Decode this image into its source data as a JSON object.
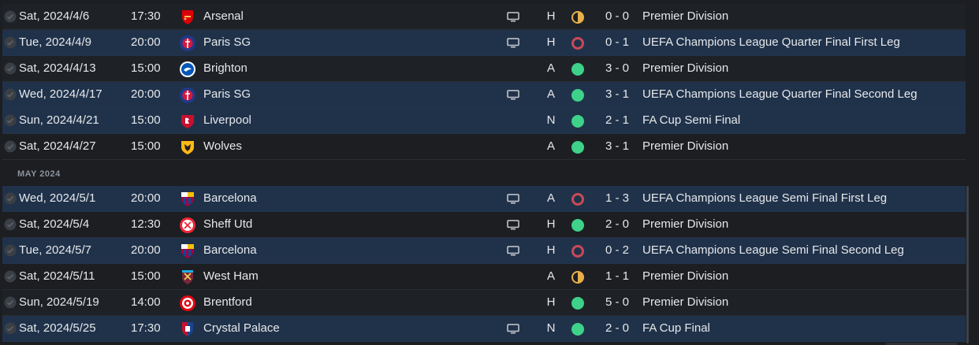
{
  "colors": {
    "win": "#3dd18a",
    "draw": "#e8b04a",
    "loss": "#c84a56",
    "row_highlight": "#20324a"
  },
  "month_header": "MAY 2024",
  "fixtures": [
    {
      "date": "Sat, 2024/4/6",
      "time": "17:30",
      "team": "Arsenal",
      "crest": "arsenal-crest-icon",
      "tv": true,
      "venue": "H",
      "result": "draw",
      "score": "0 - 0",
      "competition": "Premier Division",
      "highlight": false
    },
    {
      "date": "Tue, 2024/4/9",
      "time": "20:00",
      "team": "Paris SG",
      "crest": "psg-crest-icon",
      "tv": true,
      "venue": "H",
      "result": "loss",
      "score": "0 - 1",
      "competition": "UEFA Champions League Quarter Final First Leg",
      "highlight": true
    },
    {
      "date": "Sat, 2024/4/13",
      "time": "15:00",
      "team": "Brighton",
      "crest": "brighton-crest-icon",
      "tv": false,
      "venue": "A",
      "result": "win",
      "score": "3 - 0",
      "competition": "Premier Division",
      "highlight": false
    },
    {
      "date": "Wed, 2024/4/17",
      "time": "20:00",
      "team": "Paris SG",
      "crest": "psg-crest-icon",
      "tv": true,
      "venue": "A",
      "result": "win",
      "score": "3 - 1",
      "competition": "UEFA Champions League Quarter Final Second Leg",
      "highlight": true
    },
    {
      "date": "Sun, 2024/4/21",
      "time": "15:00",
      "team": "Liverpool",
      "crest": "liverpool-crest-icon",
      "tv": false,
      "venue": "N",
      "result": "win",
      "score": "2 - 1",
      "competition": "FA Cup Semi Final",
      "highlight": true
    },
    {
      "date": "Sat, 2024/4/27",
      "time": "15:00",
      "team": "Wolves",
      "crest": "wolves-crest-icon",
      "tv": false,
      "venue": "A",
      "result": "win",
      "score": "3 - 1",
      "competition": "Premier Division",
      "highlight": false
    },
    {
      "date": "Wed, 2024/5/1",
      "time": "20:00",
      "team": "Barcelona",
      "crest": "barcelona-crest-icon",
      "tv": true,
      "venue": "A",
      "result": "loss",
      "score": "1 - 3",
      "competition": "UEFA Champions League Semi Final First Leg",
      "highlight": true
    },
    {
      "date": "Sat, 2024/5/4",
      "time": "12:30",
      "team": "Sheff Utd",
      "crest": "sheffield-united-crest-icon",
      "tv": true,
      "venue": "H",
      "result": "win",
      "score": "2 - 0",
      "competition": "Premier Division",
      "highlight": false
    },
    {
      "date": "Tue, 2024/5/7",
      "time": "20:00",
      "team": "Barcelona",
      "crest": "barcelona-crest-icon",
      "tv": true,
      "venue": "H",
      "result": "loss",
      "score": "0 - 2",
      "competition": "UEFA Champions League Semi Final Second Leg",
      "highlight": true
    },
    {
      "date": "Sat, 2024/5/11",
      "time": "15:00",
      "team": "West Ham",
      "crest": "west-ham-crest-icon",
      "tv": false,
      "venue": "A",
      "result": "draw",
      "score": "1 - 1",
      "competition": "Premier Division",
      "highlight": false
    },
    {
      "date": "Sun, 2024/5/19",
      "time": "14:00",
      "team": "Brentford",
      "crest": "brentford-crest-icon",
      "tv": false,
      "venue": "H",
      "result": "win",
      "score": "5 - 0",
      "competition": "Premier Division",
      "highlight": false
    },
    {
      "date": "Sat, 2024/5/25",
      "time": "17:30",
      "team": "Crystal Palace",
      "crest": "crystal-palace-crest-icon",
      "tv": true,
      "venue": "N",
      "result": "win",
      "score": "2 - 0",
      "competition": "FA Cup Final",
      "highlight": true
    }
  ]
}
